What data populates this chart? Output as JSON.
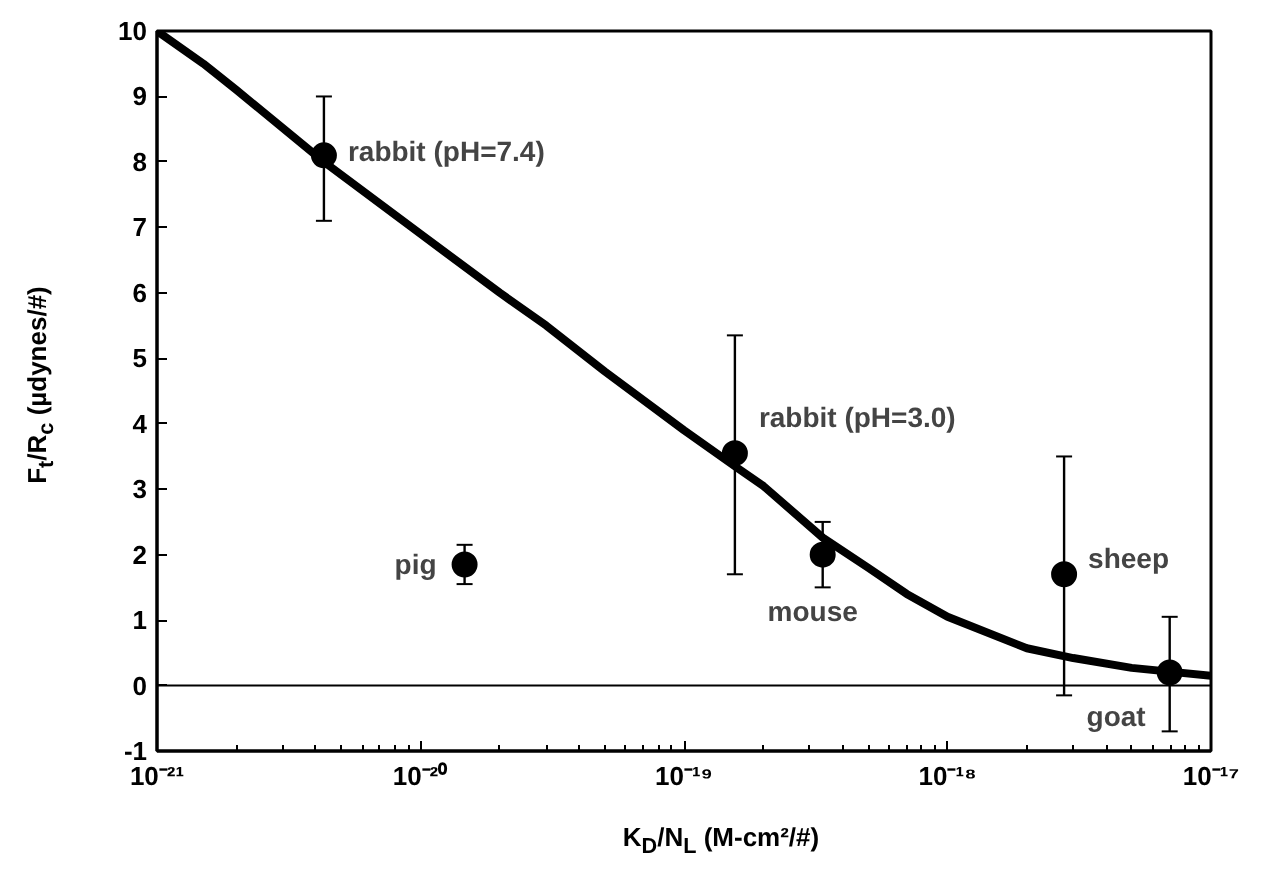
{
  "chart_data": {
    "type": "scatter",
    "xlabel": "K$_{D}$/N$_{L}$ (M-cm²/#)",
    "ylabel": "F$_{t}$/R$_{c}$ (µdynes/#)",
    "log": "x",
    "grid": false,
    "marker": "circle",
    "xlim": [
      1e-21,
      1e-17
    ],
    "ylim": [
      -1,
      10
    ],
    "xticks": [
      {
        "value": 1e-21,
        "label": "10⁻²¹"
      },
      {
        "value": 1e-20,
        "label": "10⁻²⁰"
      },
      {
        "value": 1e-19,
        "label": "10⁻¹⁹"
      },
      {
        "value": 1e-18,
        "label": "10⁻¹⁸"
      },
      {
        "value": 1e-17,
        "label": "10⁻¹⁷"
      }
    ],
    "yticks": [
      -1,
      0,
      1,
      2,
      3,
      4,
      5,
      6,
      7,
      8,
      9,
      10
    ],
    "series": [
      {
        "color": "#000000",
        "x": [
          4.3e-21,
          1.47e-20,
          1.56e-19,
          3.36e-19,
          2.77e-18,
          6.97e-18
        ],
        "values": [
          8.1,
          1.85,
          3.55,
          2.0,
          1.7,
          0.2
        ],
        "errors": [
          [
            7.1,
            9.0
          ],
          [
            1.55,
            2.15
          ],
          [
            1.7,
            5.35
          ],
          [
            1.5,
            2.5
          ],
          [
            -0.15,
            3.5
          ],
          [
            -0.7,
            1.05
          ]
        ]
      },
      {
        "type": "line",
        "marker": "none",
        "color": "#000000",
        "x": [
          1e-21,
          1.5e-21,
          2e-21,
          4.3e-21,
          1e-20,
          2e-20,
          3e-20,
          5e-20,
          1e-19,
          1.56e-19,
          2e-19,
          3.36e-19,
          5e-19,
          7e-19,
          1e-18,
          2e-18,
          3e-18,
          5e-18,
          1e-17
        ],
        "values": [
          10,
          9.5,
          9.1,
          8.0,
          6.9,
          6.0,
          5.5,
          4.8,
          3.9,
          3.35,
          3.05,
          2.26,
          1.8,
          1.4,
          1.05,
          0.57,
          0.42,
          0.27,
          0.15
        ]
      }
    ],
    "ref_lines": [
      {
        "axis": "y",
        "value": 0,
        "color": "#000000"
      }
    ],
    "annotations": [
      {
        "text": "rabbit (pH=7.4)",
        "x": 4.3e-21,
        "y": 8.1
      },
      {
        "text": "pig",
        "x": 1.47e-20,
        "y": 1.85
      },
      {
        "text": "rabbit (pH=3.0)",
        "x": 1.56e-19,
        "y": 3.55
      },
      {
        "text": "mouse",
        "x": 3.36e-19,
        "y": 2.0
      },
      {
        "text": "sheep",
        "x": 2.77e-18,
        "y": 1.7
      },
      {
        "text": "goat",
        "x": 6.97e-18,
        "y": 0.2
      }
    ]
  }
}
